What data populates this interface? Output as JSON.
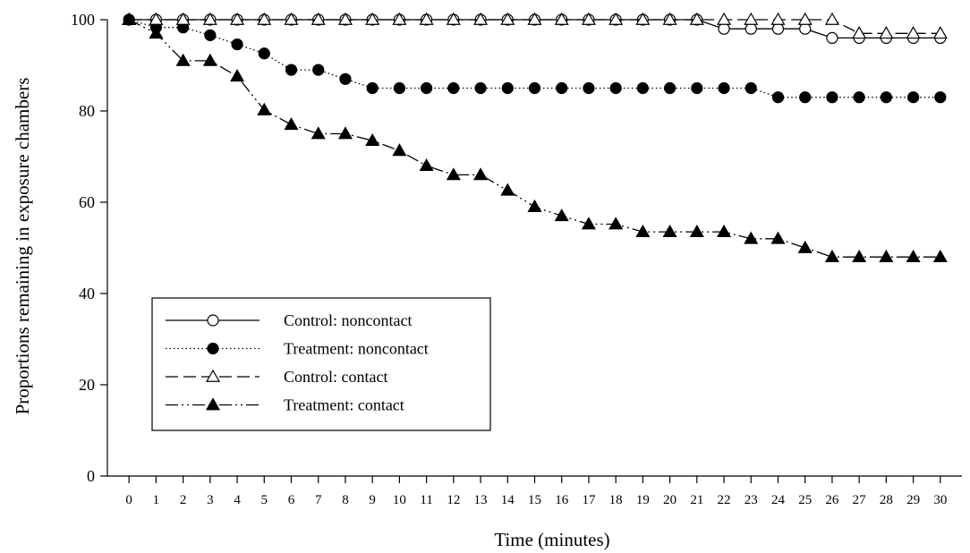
{
  "chart_data": {
    "type": "line",
    "title": "",
    "xlabel": "Time (minutes)",
    "ylabel": "Proportions remaining in exposure chambers",
    "x": [
      0,
      1,
      2,
      3,
      4,
      5,
      6,
      7,
      8,
      9,
      10,
      11,
      12,
      13,
      14,
      15,
      16,
      17,
      18,
      19,
      20,
      21,
      22,
      23,
      24,
      25,
      26,
      27,
      28,
      29,
      30
    ],
    "xlim": [
      -0.8,
      30.8
    ],
    "ylim": [
      0,
      100
    ],
    "yticks": [
      0,
      20,
      40,
      60,
      80,
      100
    ],
    "grid": false,
    "legend_position": "lower-left",
    "series": [
      {
        "name": "Control: noncontact",
        "line_style": "solid",
        "marker": "open-circle",
        "values": [
          100,
          100,
          100,
          100,
          100,
          100,
          100,
          100,
          100,
          100,
          100,
          100,
          100,
          100,
          100,
          100,
          100,
          100,
          100,
          100,
          100,
          100,
          98,
          98,
          98,
          98,
          96,
          96,
          96,
          96,
          96
        ]
      },
      {
        "name": "Treatment: noncontact",
        "line_style": "dotted",
        "marker": "filled-circle",
        "values": [
          100,
          98.3,
          98.3,
          96.6,
          94.6,
          92.6,
          89,
          89,
          87,
          85,
          85,
          85,
          85,
          85,
          85,
          85,
          85,
          85,
          85,
          85,
          85,
          85,
          85,
          85,
          83,
          83,
          83,
          83,
          83,
          83,
          83
        ]
      },
      {
        "name": "Control: contact",
        "line_style": "dashed",
        "marker": "open-triangle",
        "values": [
          100,
          100,
          100,
          100,
          100,
          100,
          100,
          100,
          100,
          100,
          100,
          100,
          100,
          100,
          100,
          100,
          100,
          100,
          100,
          100,
          100,
          100,
          100,
          100,
          100,
          100,
          100,
          97,
          97,
          97,
          97
        ]
      },
      {
        "name": "Treatment: contact",
        "line_style": "dash-dot-dot",
        "marker": "filled-triangle",
        "values": [
          100,
          97,
          91,
          91,
          87.6,
          80.2,
          77,
          75,
          75,
          73.5,
          71.3,
          68,
          66,
          66,
          62.6,
          59,
          57,
          55.2,
          55.2,
          53.5,
          53.5,
          53.5,
          53.5,
          52,
          52,
          50,
          48,
          48,
          48,
          48,
          48
        ]
      }
    ]
  }
}
